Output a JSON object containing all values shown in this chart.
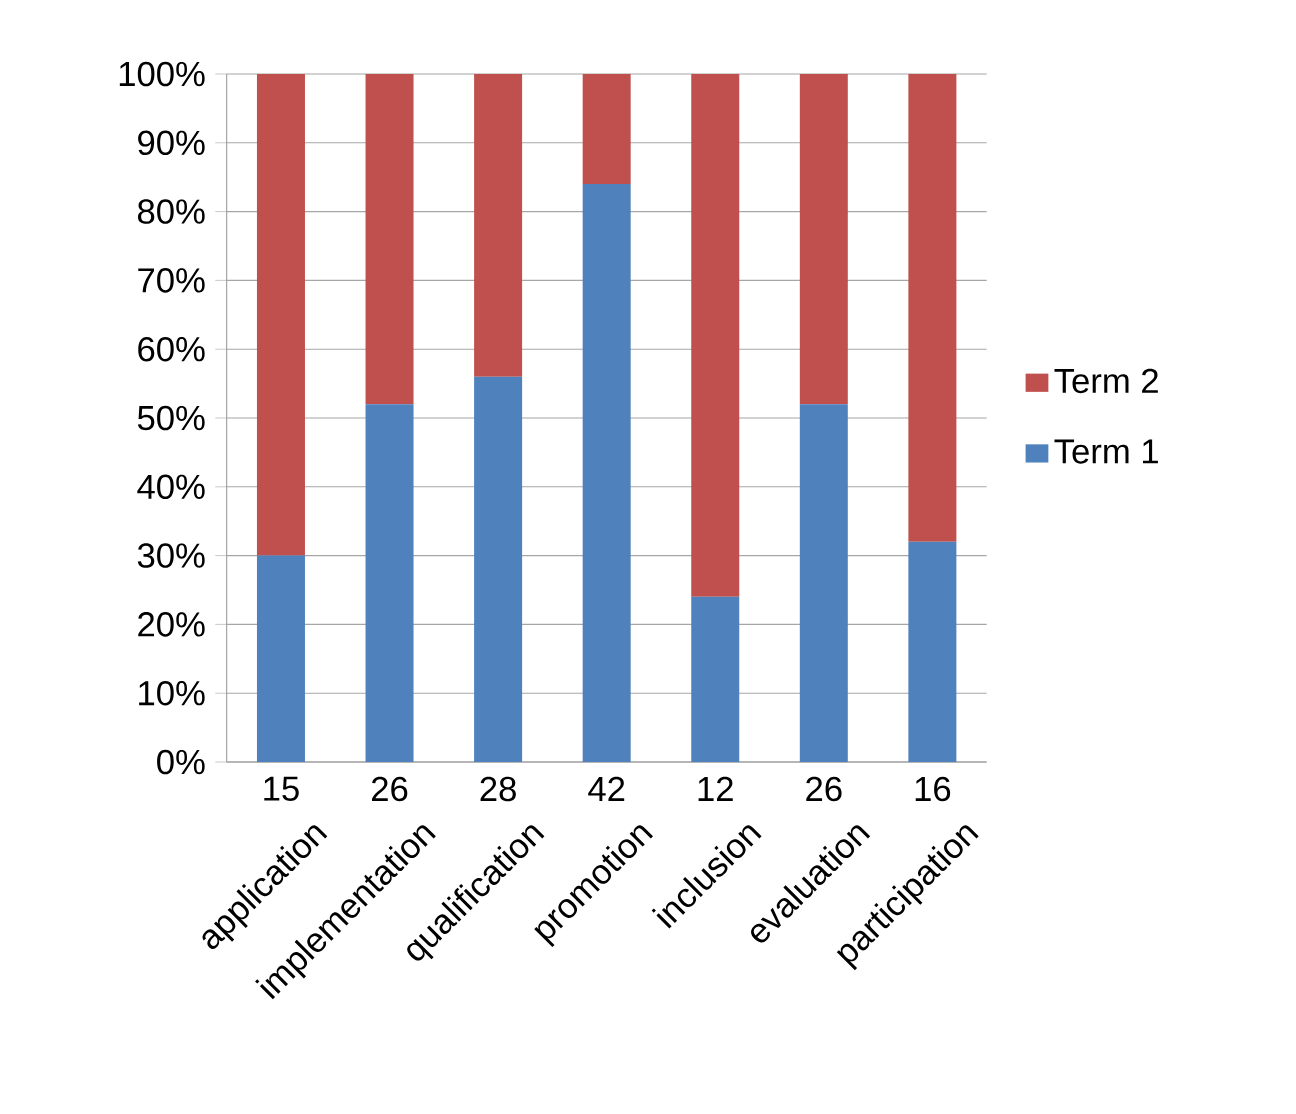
{
  "chart_data": {
    "type": "bar",
    "stacked": true,
    "categories": [
      "application",
      "implementation",
      "qualification",
      "promotion",
      "inclusion",
      "evaluation",
      "participation"
    ],
    "series": [
      {
        "name": "Term 1",
        "color": "#4f81bd",
        "values": [
          30,
          52,
          56,
          84,
          24,
          52,
          32
        ]
      },
      {
        "name": "Term 2",
        "color": "#c0504d",
        "values": [
          70,
          48,
          44,
          16,
          76,
          48,
          68
        ]
      }
    ],
    "ylim": [
      0,
      100
    ],
    "yticks": [
      {
        "value": 0,
        "label": "0%"
      },
      {
        "value": 10,
        "label": "10%"
      },
      {
        "value": 20,
        "label": "20%"
      },
      {
        "value": 30,
        "label": "30%"
      },
      {
        "value": 40,
        "label": "40%"
      },
      {
        "value": 50,
        "label": "50%"
      },
      {
        "value": 60,
        "label": "60%"
      },
      {
        "value": 70,
        "label": "70%"
      },
      {
        "value": 80,
        "label": "80%"
      },
      {
        "value": 90,
        "label": "90%"
      },
      {
        "value": 100,
        "label": "100%"
      }
    ],
    "annotations": [
      "15",
      "26",
      "28",
      "42",
      "12",
      "26",
      "16"
    ],
    "grid": "y",
    "legend": "right"
  }
}
